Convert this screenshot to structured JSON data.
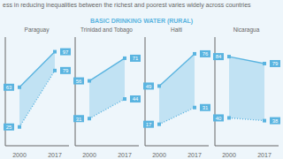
{
  "title": "ess in reducing inequalities between the richest and poorest varies widely across countries",
  "subtitle": "BASIC DRINKING WATER (RURAL)",
  "chart_data": [
    {
      "type": "line",
      "title": "Paraguay",
      "categories": [
        "2000",
        "2017"
      ],
      "series": [
        {
          "color": "#5ab4e0",
          "line_style": "solid",
          "marker": "square",
          "values": [
            63,
            97
          ]
        },
        {
          "color": "#5ab4e0",
          "line_style": "dotted",
          "marker": "square",
          "values": [
            25,
            79
          ]
        }
      ],
      "ylim": [
        7,
        111
      ],
      "yticks": [],
      "tick_labels": "x",
      "data_labels": true,
      "grid": false
    },
    {
      "type": "line",
      "title": "Trinidad and Tobago",
      "categories": [
        "2000",
        "2017"
      ],
      "series": [
        {
          "color": "#5ab4e0",
          "line_style": "solid",
          "marker": "square",
          "values": [
            56,
            71
          ]
        },
        {
          "color": "#5ab4e0",
          "line_style": "dotted",
          "marker": "square",
          "values": [
            31,
            44
          ]
        }
      ],
      "ylim": [
        13,
        85
      ],
      "yticks": [],
      "tick_labels": "x",
      "data_labels": true,
      "grid": false
    },
    {
      "type": "line",
      "title": "Haiti",
      "categories": [
        "2000",
        "2017"
      ],
      "series": [
        {
          "color": "#5ab4e0",
          "line_style": "solid",
          "marker": "square",
          "values": [
            49,
            76
          ]
        },
        {
          "color": "#5ab4e0",
          "line_style": "dotted",
          "marker": "square",
          "values": [
            17,
            31
          ]
        }
      ],
      "ylim": [
        -1,
        90
      ],
      "yticks": [],
      "tick_labels": "x",
      "data_labels": true,
      "grid": false
    },
    {
      "type": "line",
      "title": "Nicaragua",
      "categories": [
        "2000",
        "2017"
      ],
      "series": [
        {
          "color": "#5ab4e0",
          "line_style": "solid",
          "marker": "square",
          "values": [
            84,
            79
          ]
        },
        {
          "color": "#5ab4e0",
          "line_style": "dotted",
          "marker": "square",
          "values": [
            40,
            38
          ]
        }
      ],
      "ylim": [
        20,
        98
      ],
      "yticks": [],
      "tick_labels": "x",
      "data_labels": true,
      "grid": false
    }
  ]
}
